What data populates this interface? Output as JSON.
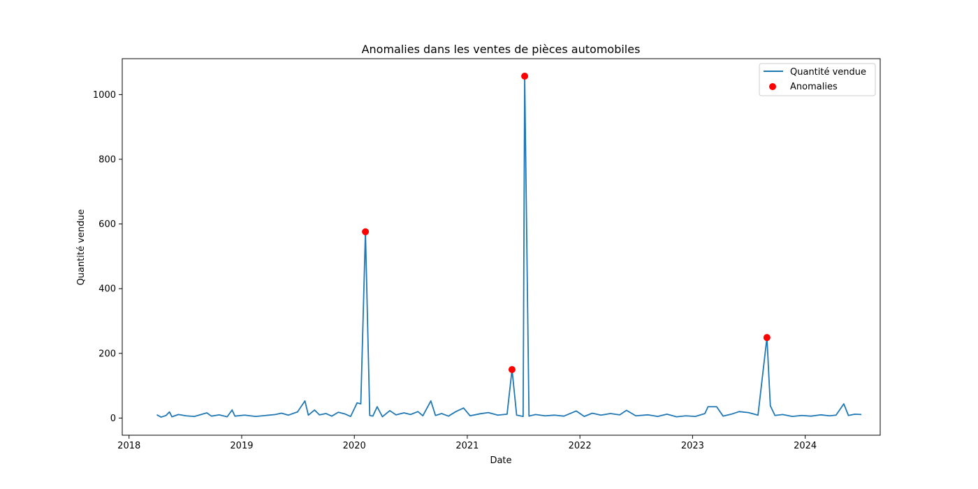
{
  "chart_data": {
    "type": "line",
    "title": "Anomalies dans les ventes de pièces automobiles",
    "xlabel": "Date",
    "ylabel": "Quantité vendue",
    "x_axis": "date",
    "xlim": [
      "2017-12-10",
      "2024-08-31"
    ],
    "ylim": [
      -53,
      1111
    ],
    "x_ticks": [
      {
        "value": "2018-01-01",
        "label": "2018"
      },
      {
        "value": "2019-01-01",
        "label": "2019"
      },
      {
        "value": "2020-01-01",
        "label": "2020"
      },
      {
        "value": "2021-01-01",
        "label": "2021"
      },
      {
        "value": "2022-01-01",
        "label": "2022"
      },
      {
        "value": "2023-01-01",
        "label": "2023"
      },
      {
        "value": "2024-01-01",
        "label": "2024"
      }
    ],
    "y_ticks": [
      0,
      200,
      400,
      600,
      800,
      1000
    ],
    "grid": false,
    "legend_position": "top-right",
    "series": [
      {
        "name": "Quantité vendue",
        "kind": "line",
        "color": "#1f77b4",
        "points": [
          [
            "2018-04-01",
            10
          ],
          [
            "2018-04-15",
            3
          ],
          [
            "2018-05-01",
            8
          ],
          [
            "2018-05-12",
            19
          ],
          [
            "2018-05-20",
            4
          ],
          [
            "2018-06-10",
            11
          ],
          [
            "2018-07-05",
            7
          ],
          [
            "2018-08-01",
            5
          ],
          [
            "2018-09-10",
            16
          ],
          [
            "2018-09-25",
            6
          ],
          [
            "2018-10-20",
            10
          ],
          [
            "2018-11-15",
            4
          ],
          [
            "2018-12-01",
            25
          ],
          [
            "2018-12-10",
            6
          ],
          [
            "2019-01-10",
            9
          ],
          [
            "2019-02-15",
            5
          ],
          [
            "2019-03-20",
            8
          ],
          [
            "2019-04-20",
            11
          ],
          [
            "2019-05-10",
            15
          ],
          [
            "2019-06-01",
            9
          ],
          [
            "2019-07-01",
            19
          ],
          [
            "2019-07-25",
            53
          ],
          [
            "2019-08-05",
            9
          ],
          [
            "2019-08-25",
            25
          ],
          [
            "2019-09-10",
            10
          ],
          [
            "2019-10-01",
            14
          ],
          [
            "2019-10-20",
            6
          ],
          [
            "2019-11-10",
            18
          ],
          [
            "2019-12-01",
            13
          ],
          [
            "2019-12-20",
            5
          ],
          [
            "2020-01-10",
            47
          ],
          [
            "2020-01-22",
            44
          ],
          [
            "2020-02-06",
            576
          ],
          [
            "2020-02-20",
            8
          ],
          [
            "2020-03-01",
            6
          ],
          [
            "2020-03-15",
            35
          ],
          [
            "2020-04-01",
            4
          ],
          [
            "2020-04-25",
            23
          ],
          [
            "2020-05-15",
            10
          ],
          [
            "2020-06-10",
            16
          ],
          [
            "2020-07-01",
            11
          ],
          [
            "2020-07-25",
            20
          ],
          [
            "2020-08-10",
            7
          ],
          [
            "2020-09-05",
            53
          ],
          [
            "2020-09-20",
            8
          ],
          [
            "2020-10-10",
            14
          ],
          [
            "2020-11-01",
            6
          ],
          [
            "2020-11-25",
            20
          ],
          [
            "2020-12-20",
            31
          ],
          [
            "2021-01-10",
            7
          ],
          [
            "2021-02-10",
            13
          ],
          [
            "2021-03-10",
            17
          ],
          [
            "2021-04-10",
            9
          ],
          [
            "2021-05-10",
            12
          ],
          [
            "2021-05-26",
            150
          ],
          [
            "2021-06-10",
            9
          ],
          [
            "2021-07-01",
            5
          ],
          [
            "2021-07-06",
            1057
          ],
          [
            "2021-07-20",
            6
          ],
          [
            "2021-08-10",
            11
          ],
          [
            "2021-09-10",
            7
          ],
          [
            "2021-10-10",
            9
          ],
          [
            "2021-11-10",
            6
          ],
          [
            "2021-12-20",
            22
          ],
          [
            "2022-01-15",
            5
          ],
          [
            "2022-02-10",
            15
          ],
          [
            "2022-03-10",
            9
          ],
          [
            "2022-04-10",
            14
          ],
          [
            "2022-05-10",
            10
          ],
          [
            "2022-06-01",
            24
          ],
          [
            "2022-07-01",
            7
          ],
          [
            "2022-08-10",
            10
          ],
          [
            "2022-09-10",
            5
          ],
          [
            "2022-10-10",
            12
          ],
          [
            "2022-11-10",
            4
          ],
          [
            "2022-12-10",
            7
          ],
          [
            "2023-01-10",
            5
          ],
          [
            "2023-02-10",
            14
          ],
          [
            "2023-02-20",
            35
          ],
          [
            "2023-03-20",
            35
          ],
          [
            "2023-04-10",
            6
          ],
          [
            "2023-05-10",
            13
          ],
          [
            "2023-06-01",
            20
          ],
          [
            "2023-07-01",
            17
          ],
          [
            "2023-08-01",
            9
          ],
          [
            "2023-08-30",
            249
          ],
          [
            "2023-09-10",
            38
          ],
          [
            "2023-09-25",
            8
          ],
          [
            "2023-10-20",
            11
          ],
          [
            "2023-11-20",
            5
          ],
          [
            "2023-12-20",
            8
          ],
          [
            "2024-01-20",
            6
          ],
          [
            "2024-02-20",
            10
          ],
          [
            "2024-03-20",
            7
          ],
          [
            "2024-04-10",
            9
          ],
          [
            "2024-05-05",
            44
          ],
          [
            "2024-05-20",
            8
          ],
          [
            "2024-06-10",
            12
          ],
          [
            "2024-07-01",
            11
          ]
        ]
      },
      {
        "name": "Anomalies",
        "kind": "scatter",
        "color": "#ff0000",
        "points": [
          [
            "2020-02-06",
            576
          ],
          [
            "2021-05-26",
            150
          ],
          [
            "2021-07-06",
            1057
          ],
          [
            "2023-08-30",
            249
          ]
        ]
      }
    ]
  }
}
